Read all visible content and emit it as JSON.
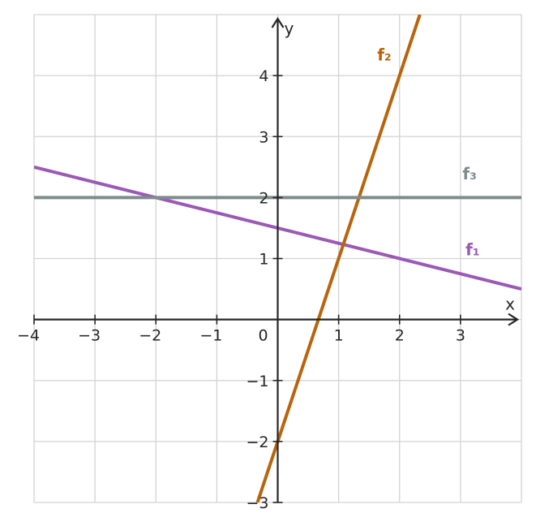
{
  "chart_data": {
    "type": "line",
    "title": "",
    "xlabel": "x",
    "ylabel": "y",
    "xlim": [
      -4,
      4
    ],
    "ylim": [
      -3,
      5
    ],
    "grid": true,
    "x_ticks": [
      -4,
      -3,
      -2,
      -1,
      1,
      2,
      3
    ],
    "y_ticks": [
      -3,
      -2,
      -1,
      1,
      2,
      3,
      4
    ],
    "x_tick_labels": [
      "−4",
      "−3",
      "−2",
      "−1",
      "1",
      "2",
      "3"
    ],
    "y_tick_labels": [
      "−3",
      "−2",
      "−1",
      "1",
      "2",
      "3",
      "4"
    ],
    "origin_label": "0",
    "series": [
      {
        "name": "f₁",
        "color": "#9b59b6",
        "x": [
          -4,
          4
        ],
        "y": [
          2.5,
          0.5
        ],
        "label_at": [
          3.2,
          1.05
        ]
      },
      {
        "name": "f₂",
        "color": "#b8650a",
        "x": [
          -0.333,
          2.333
        ],
        "y": [
          -3,
          5
        ],
        "label_at": [
          1.75,
          4.25
        ]
      },
      {
        "name": "f₃",
        "color": "#7f8c8d",
        "x": [
          -4,
          4
        ],
        "y": [
          2,
          2
        ],
        "label_at": [
          3.15,
          2.3
        ]
      }
    ]
  }
}
